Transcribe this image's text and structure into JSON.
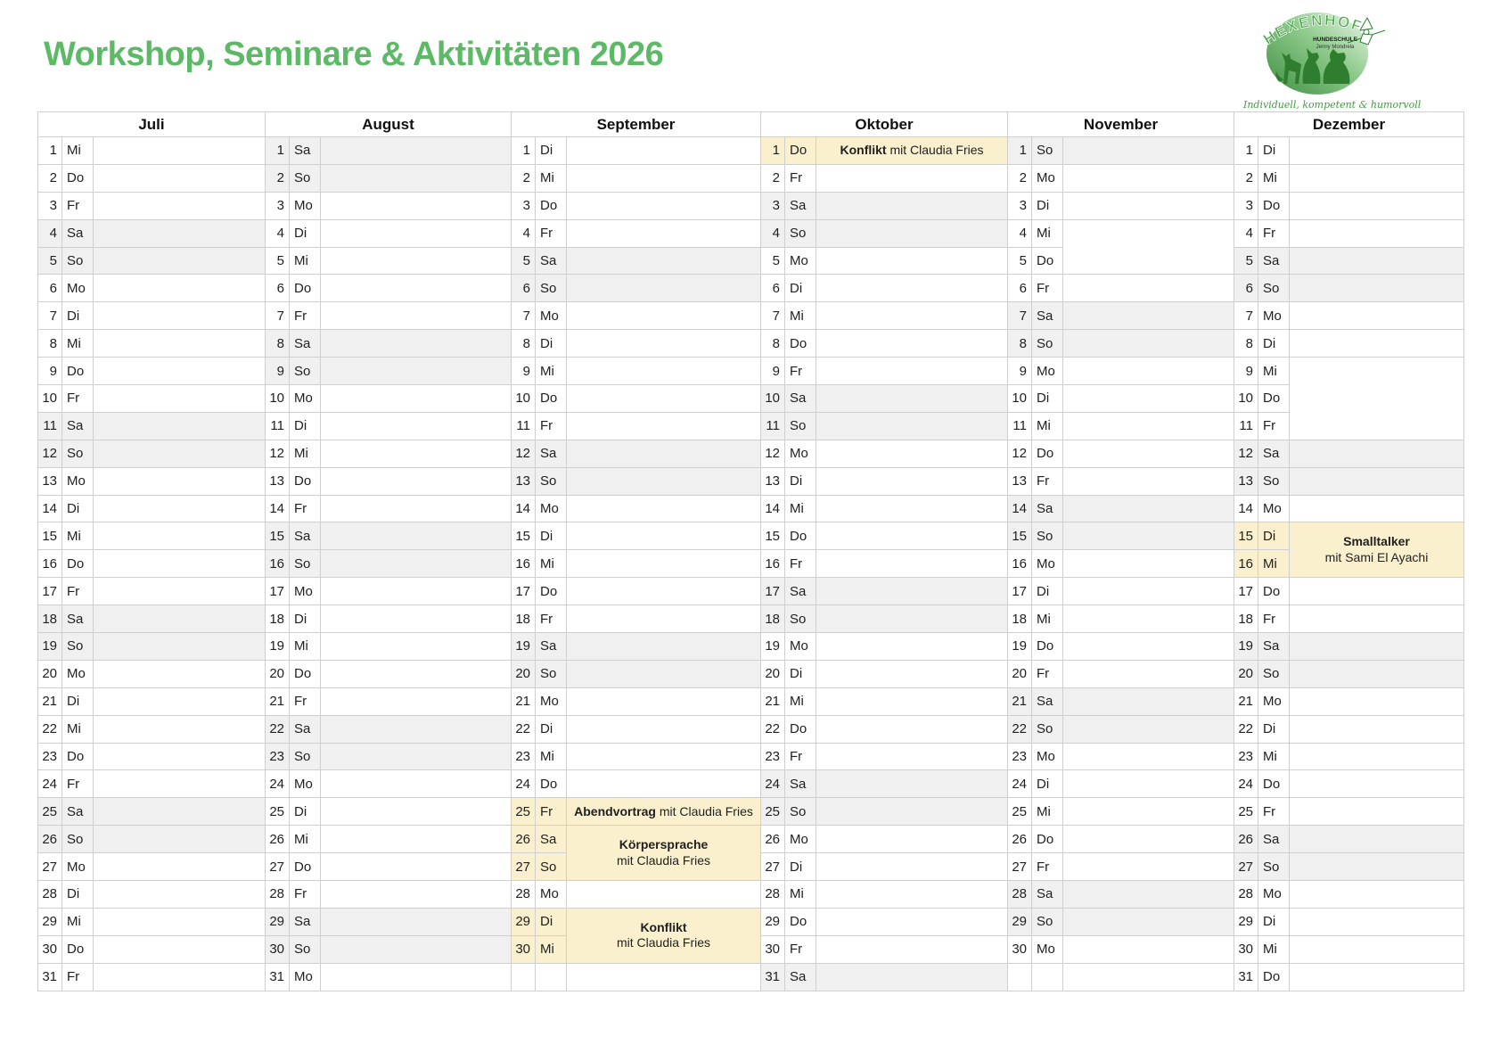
{
  "page": {
    "title": "Workshop, Seminare & Aktivitäten 2026"
  },
  "logo": {
    "brand": "HEXENHOF",
    "line1": "HUNDESCHULE",
    "line2": "Jenny Mondrela",
    "tagline": "Individuell, kompetent & humorvoll"
  },
  "colors": {
    "title_green": "#5cb966",
    "event_highlight": "#fbf0cd",
    "weekend_gray": "#f0f0f0",
    "logo_green_dark": "#3e8e41",
    "logo_green_light": "#e4f4df"
  },
  "calendar": {
    "months": [
      {
        "name": "Juli",
        "days": [
          {
            "d": 1,
            "w": "Mi"
          },
          {
            "d": 2,
            "w": "Do"
          },
          {
            "d": 3,
            "w": "Fr"
          },
          {
            "d": 4,
            "w": "Sa"
          },
          {
            "d": 5,
            "w": "So"
          },
          {
            "d": 6,
            "w": "Mo"
          },
          {
            "d": 7,
            "w": "Di"
          },
          {
            "d": 8,
            "w": "Mi"
          },
          {
            "d": 9,
            "w": "Do"
          },
          {
            "d": 10,
            "w": "Fr"
          },
          {
            "d": 11,
            "w": "Sa"
          },
          {
            "d": 12,
            "w": "So"
          },
          {
            "d": 13,
            "w": "Mo"
          },
          {
            "d": 14,
            "w": "Di"
          },
          {
            "d": 15,
            "w": "Mi"
          },
          {
            "d": 16,
            "w": "Do"
          },
          {
            "d": 17,
            "w": "Fr"
          },
          {
            "d": 18,
            "w": "Sa"
          },
          {
            "d": 19,
            "w": "So"
          },
          {
            "d": 20,
            "w": "Mo"
          },
          {
            "d": 21,
            "w": "Di"
          },
          {
            "d": 22,
            "w": "Mi"
          },
          {
            "d": 23,
            "w": "Do"
          },
          {
            "d": 24,
            "w": "Fr"
          },
          {
            "d": 25,
            "w": "Sa"
          },
          {
            "d": 26,
            "w": "So"
          },
          {
            "d": 27,
            "w": "Mo"
          },
          {
            "d": 28,
            "w": "Di"
          },
          {
            "d": 29,
            "w": "Mi"
          },
          {
            "d": 30,
            "w": "Do"
          },
          {
            "d": 31,
            "w": "Fr"
          }
        ],
        "events": [],
        "empty_merges": []
      },
      {
        "name": "August",
        "days": [
          {
            "d": 1,
            "w": "Sa"
          },
          {
            "d": 2,
            "w": "So"
          },
          {
            "d": 3,
            "w": "Mo"
          },
          {
            "d": 4,
            "w": "Di"
          },
          {
            "d": 5,
            "w": "Mi"
          },
          {
            "d": 6,
            "w": "Do"
          },
          {
            "d": 7,
            "w": "Fr"
          },
          {
            "d": 8,
            "w": "Sa"
          },
          {
            "d": 9,
            "w": "So"
          },
          {
            "d": 10,
            "w": "Mo"
          },
          {
            "d": 11,
            "w": "Di"
          },
          {
            "d": 12,
            "w": "Mi"
          },
          {
            "d": 13,
            "w": "Do"
          },
          {
            "d": 14,
            "w": "Fr"
          },
          {
            "d": 15,
            "w": "Sa"
          },
          {
            "d": 16,
            "w": "So"
          },
          {
            "d": 17,
            "w": "Mo"
          },
          {
            "d": 18,
            "w": "Di"
          },
          {
            "d": 19,
            "w": "Mi"
          },
          {
            "d": 20,
            "w": "Do"
          },
          {
            "d": 21,
            "w": "Fr"
          },
          {
            "d": 22,
            "w": "Sa"
          },
          {
            "d": 23,
            "w": "So"
          },
          {
            "d": 24,
            "w": "Mo"
          },
          {
            "d": 25,
            "w": "Di"
          },
          {
            "d": 26,
            "w": "Mi"
          },
          {
            "d": 27,
            "w": "Do"
          },
          {
            "d": 28,
            "w": "Fr"
          },
          {
            "d": 29,
            "w": "Sa"
          },
          {
            "d": 30,
            "w": "So"
          },
          {
            "d": 31,
            "w": "Mo"
          }
        ],
        "events": [],
        "empty_merges": []
      },
      {
        "name": "September",
        "days": [
          {
            "d": 1,
            "w": "Di"
          },
          {
            "d": 2,
            "w": "Mi"
          },
          {
            "d": 3,
            "w": "Do"
          },
          {
            "d": 4,
            "w": "Fr"
          },
          {
            "d": 5,
            "w": "Sa"
          },
          {
            "d": 6,
            "w": "So"
          },
          {
            "d": 7,
            "w": "Mo"
          },
          {
            "d": 8,
            "w": "Di"
          },
          {
            "d": 9,
            "w": "Mi"
          },
          {
            "d": 10,
            "w": "Do"
          },
          {
            "d": 11,
            "w": "Fr"
          },
          {
            "d": 12,
            "w": "Sa"
          },
          {
            "d": 13,
            "w": "So"
          },
          {
            "d": 14,
            "w": "Mo"
          },
          {
            "d": 15,
            "w": "Di"
          },
          {
            "d": 16,
            "w": "Mi"
          },
          {
            "d": 17,
            "w": "Do"
          },
          {
            "d": 18,
            "w": "Fr"
          },
          {
            "d": 19,
            "w": "Sa"
          },
          {
            "d": 20,
            "w": "So"
          },
          {
            "d": 21,
            "w": "Mo"
          },
          {
            "d": 22,
            "w": "Di"
          },
          {
            "d": 23,
            "w": "Mi"
          },
          {
            "d": 24,
            "w": "Do"
          },
          {
            "d": 25,
            "w": "Fr"
          },
          {
            "d": 26,
            "w": "Sa"
          },
          {
            "d": 27,
            "w": "So"
          },
          {
            "d": 28,
            "w": "Mo"
          },
          {
            "d": 29,
            "w": "Di"
          },
          {
            "d": 30,
            "w": "Mi"
          }
        ],
        "events": [
          {
            "start": 25,
            "end": 25,
            "title": "Abendvortrag",
            "with": "mit Claudia Fries",
            "layout": "inline"
          },
          {
            "start": 26,
            "end": 27,
            "title": "Körpersprache",
            "with": "mit Claudia Fries",
            "layout": "stacked"
          },
          {
            "start": 29,
            "end": 30,
            "title": "Konflikt",
            "with": "mit Claudia Fries",
            "layout": "stacked"
          }
        ],
        "empty_merges": []
      },
      {
        "name": "Oktober",
        "days": [
          {
            "d": 1,
            "w": "Do"
          },
          {
            "d": 2,
            "w": "Fr"
          },
          {
            "d": 3,
            "w": "Sa"
          },
          {
            "d": 4,
            "w": "So"
          },
          {
            "d": 5,
            "w": "Mo"
          },
          {
            "d": 6,
            "w": "Di"
          },
          {
            "d": 7,
            "w": "Mi"
          },
          {
            "d": 8,
            "w": "Do"
          },
          {
            "d": 9,
            "w": "Fr"
          },
          {
            "d": 10,
            "w": "Sa"
          },
          {
            "d": 11,
            "w": "So"
          },
          {
            "d": 12,
            "w": "Mo"
          },
          {
            "d": 13,
            "w": "Di"
          },
          {
            "d": 14,
            "w": "Mi"
          },
          {
            "d": 15,
            "w": "Do"
          },
          {
            "d": 16,
            "w": "Fr"
          },
          {
            "d": 17,
            "w": "Sa"
          },
          {
            "d": 18,
            "w": "So"
          },
          {
            "d": 19,
            "w": "Mo"
          },
          {
            "d": 20,
            "w": "Di"
          },
          {
            "d": 21,
            "w": "Mi"
          },
          {
            "d": 22,
            "w": "Do"
          },
          {
            "d": 23,
            "w": "Fr"
          },
          {
            "d": 24,
            "w": "Sa"
          },
          {
            "d": 25,
            "w": "So"
          },
          {
            "d": 26,
            "w": "Mo"
          },
          {
            "d": 27,
            "w": "Di"
          },
          {
            "d": 28,
            "w": "Mi"
          },
          {
            "d": 29,
            "w": "Do"
          },
          {
            "d": 30,
            "w": "Fr"
          },
          {
            "d": 31,
            "w": "Sa"
          }
        ],
        "events": [
          {
            "start": 1,
            "end": 1,
            "title": "Konflikt",
            "with": "mit Claudia Fries",
            "layout": "inline"
          }
        ],
        "empty_merges": []
      },
      {
        "name": "November",
        "days": [
          {
            "d": 1,
            "w": "So"
          },
          {
            "d": 2,
            "w": "Mo"
          },
          {
            "d": 3,
            "w": "Di"
          },
          {
            "d": 4,
            "w": "Mi"
          },
          {
            "d": 5,
            "w": "Do"
          },
          {
            "d": 6,
            "w": "Fr"
          },
          {
            "d": 7,
            "w": "Sa"
          },
          {
            "d": 8,
            "w": "So"
          },
          {
            "d": 9,
            "w": "Mo"
          },
          {
            "d": 10,
            "w": "Di"
          },
          {
            "d": 11,
            "w": "Mi"
          },
          {
            "d": 12,
            "w": "Do"
          },
          {
            "d": 13,
            "w": "Fr"
          },
          {
            "d": 14,
            "w": "Sa"
          },
          {
            "d": 15,
            "w": "So"
          },
          {
            "d": 16,
            "w": "Mo"
          },
          {
            "d": 17,
            "w": "Di"
          },
          {
            "d": 18,
            "w": "Mi"
          },
          {
            "d": 19,
            "w": "Do"
          },
          {
            "d": 20,
            "w": "Fr"
          },
          {
            "d": 21,
            "w": "Sa"
          },
          {
            "d": 22,
            "w": "So"
          },
          {
            "d": 23,
            "w": "Mo"
          },
          {
            "d": 24,
            "w": "Di"
          },
          {
            "d": 25,
            "w": "Mi"
          },
          {
            "d": 26,
            "w": "Do"
          },
          {
            "d": 27,
            "w": "Fr"
          },
          {
            "d": 28,
            "w": "Sa"
          },
          {
            "d": 29,
            "w": "So"
          },
          {
            "d": 30,
            "w": "Mo"
          }
        ],
        "events": [],
        "empty_merges": [
          {
            "start": 4,
            "end": 5
          }
        ]
      },
      {
        "name": "Dezember",
        "days": [
          {
            "d": 1,
            "w": "Di"
          },
          {
            "d": 2,
            "w": "Mi"
          },
          {
            "d": 3,
            "w": "Do"
          },
          {
            "d": 4,
            "w": "Fr"
          },
          {
            "d": 5,
            "w": "Sa"
          },
          {
            "d": 6,
            "w": "So"
          },
          {
            "d": 7,
            "w": "Mo"
          },
          {
            "d": 8,
            "w": "Di"
          },
          {
            "d": 9,
            "w": "Mi"
          },
          {
            "d": 10,
            "w": "Do"
          },
          {
            "d": 11,
            "w": "Fr"
          },
          {
            "d": 12,
            "w": "Sa"
          },
          {
            "d": 13,
            "w": "So"
          },
          {
            "d": 14,
            "w": "Mo"
          },
          {
            "d": 15,
            "w": "Di"
          },
          {
            "d": 16,
            "w": "Mi"
          },
          {
            "d": 17,
            "w": "Do"
          },
          {
            "d": 18,
            "w": "Fr"
          },
          {
            "d": 19,
            "w": "Sa"
          },
          {
            "d": 20,
            "w": "So"
          },
          {
            "d": 21,
            "w": "Mo"
          },
          {
            "d": 22,
            "w": "Di"
          },
          {
            "d": 23,
            "w": "Mi"
          },
          {
            "d": 24,
            "w": "Do"
          },
          {
            "d": 25,
            "w": "Fr"
          },
          {
            "d": 26,
            "w": "Sa"
          },
          {
            "d": 27,
            "w": "So"
          },
          {
            "d": 28,
            "w": "Mo"
          },
          {
            "d": 29,
            "w": "Di"
          },
          {
            "d": 30,
            "w": "Mi"
          },
          {
            "d": 31,
            "w": "Do"
          }
        ],
        "events": [
          {
            "start": 15,
            "end": 16,
            "title": "Smalltalker",
            "with": "mit Sami El Ayachi",
            "layout": "stacked"
          }
        ],
        "empty_merges": [
          {
            "start": 9,
            "end": 11
          }
        ]
      }
    ]
  }
}
